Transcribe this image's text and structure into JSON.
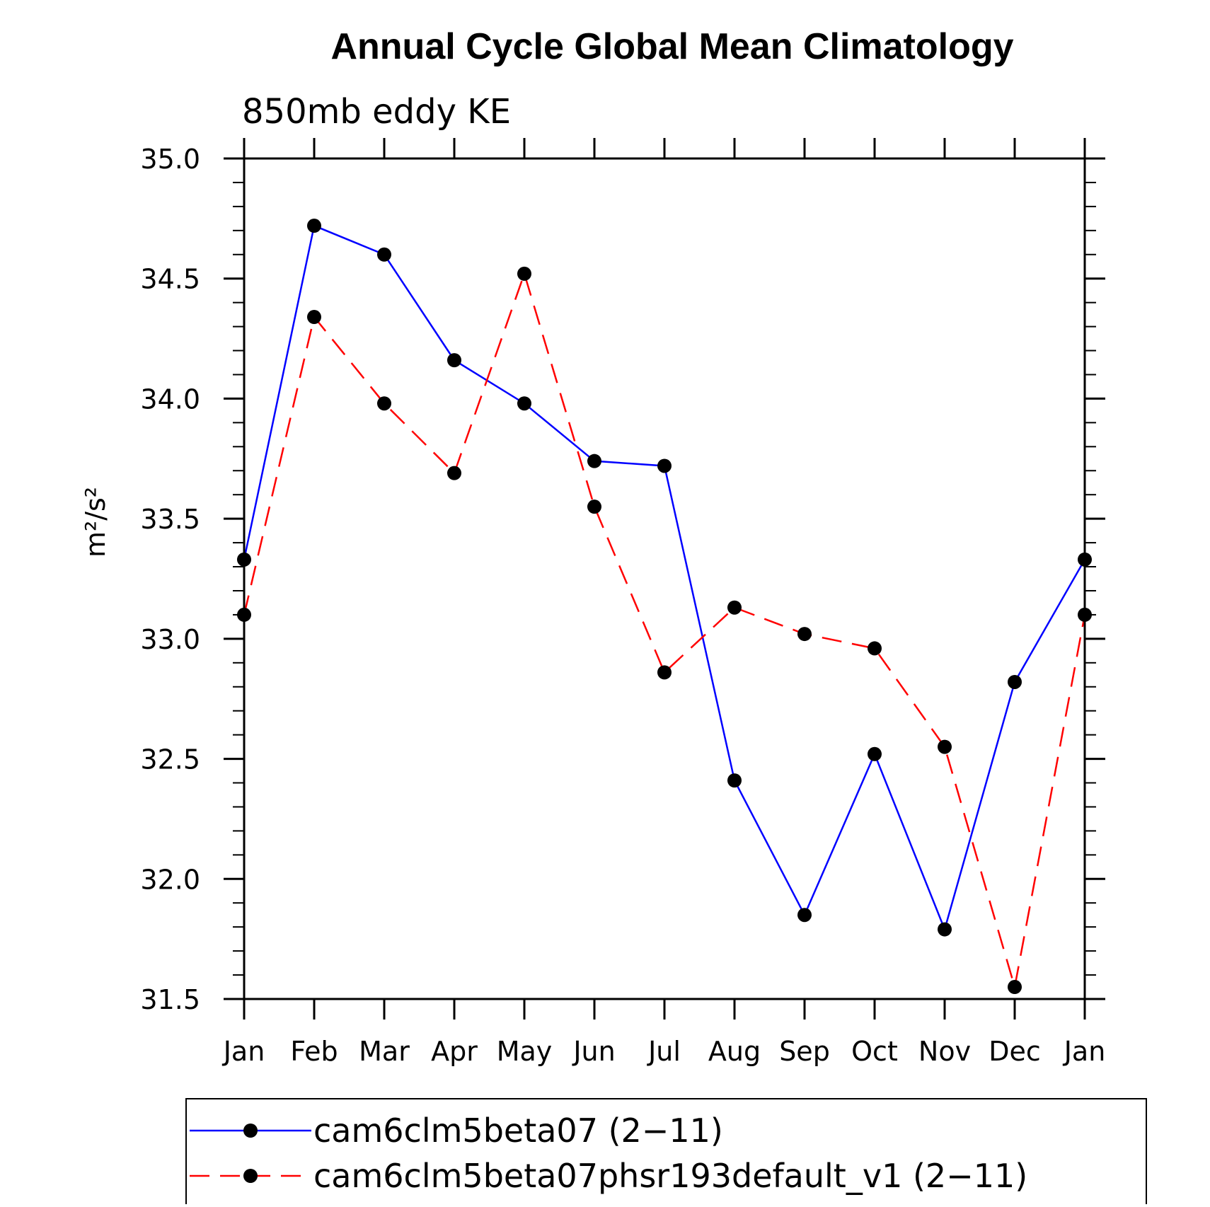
{
  "chart_data": {
    "type": "line",
    "title": "Annual Cycle Global Mean Climatology",
    "subtitle": "850mb eddy KE",
    "xlabel": "",
    "ylabel": "m²/s²",
    "categories": [
      "Jan",
      "Feb",
      "Mar",
      "Apr",
      "May",
      "Jun",
      "Jul",
      "Aug",
      "Sep",
      "Oct",
      "Nov",
      "Dec",
      "Jan"
    ],
    "ylim": [
      31.5,
      35.0
    ],
    "yticks": [
      31.5,
      32.0,
      32.5,
      33.0,
      33.5,
      34.0,
      34.5,
      35.0
    ],
    "ytick_labels": [
      "31.5",
      "32.0",
      "32.5",
      "33.0",
      "33.5",
      "34.0",
      "34.5",
      "35.0"
    ],
    "grid": false,
    "legend_position": "bottom",
    "series": [
      {
        "name": "cam6clm5beta07 (2−11)",
        "color": "#0000ff",
        "line_style": "solid",
        "marker_color": "#000000",
        "values": [
          33.33,
          34.72,
          34.6,
          34.16,
          33.98,
          33.74,
          33.72,
          32.41,
          31.85,
          32.52,
          31.79,
          32.82,
          33.33
        ]
      },
      {
        "name": "cam6clm5beta07phsr193default_v1 (2−11)",
        "color": "#ff0000",
        "line_style": "dashed",
        "marker_color": "#000000",
        "values": [
          33.1,
          34.34,
          33.98,
          33.69,
          34.52,
          33.55,
          32.86,
          33.13,
          33.02,
          32.96,
          32.55,
          31.55,
          33.1
        ]
      }
    ]
  }
}
